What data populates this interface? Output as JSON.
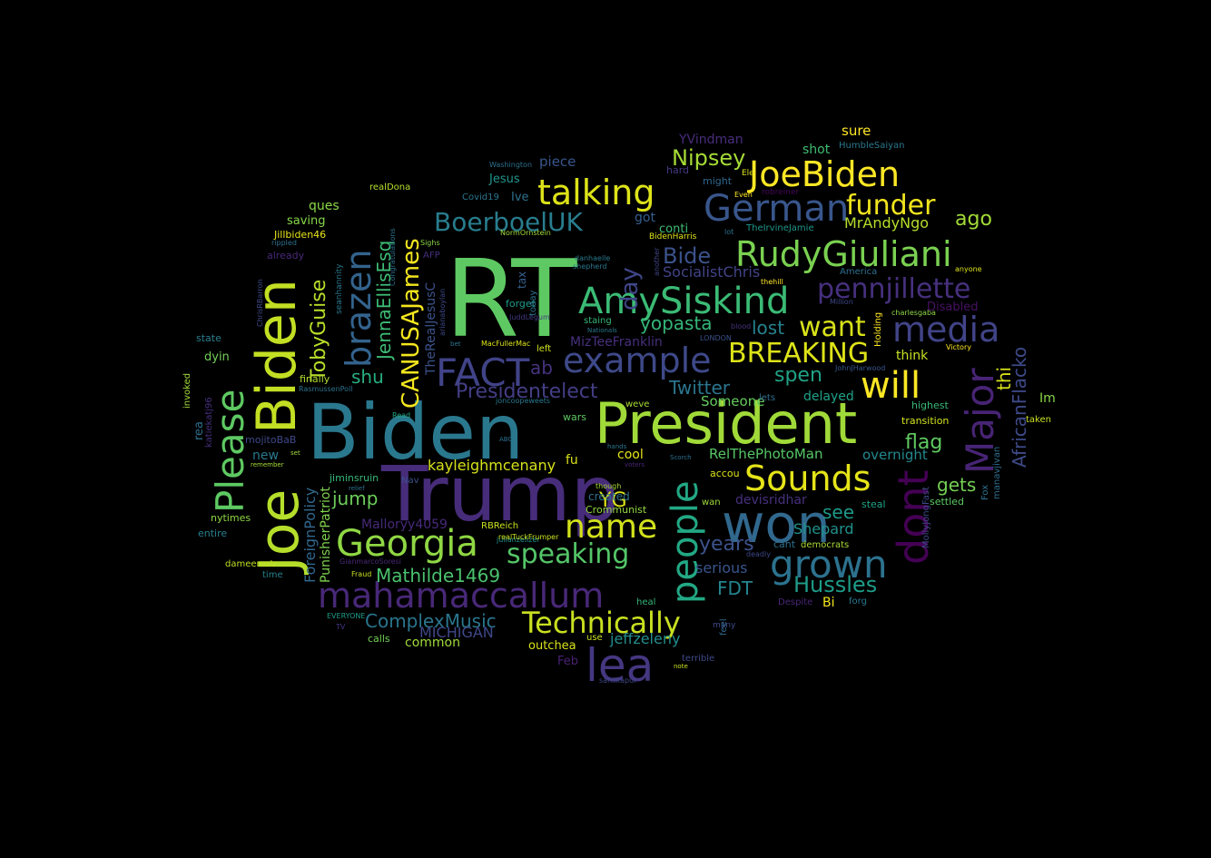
{
  "chart_data": {
    "type": "wordcloud",
    "words": [
      {
        "text": "RT",
        "color": "#5ec962"
      },
      {
        "text": "Biden",
        "color": "#2a788e"
      },
      {
        "text": "Trump",
        "color": "#472c7a"
      },
      {
        "text": "President",
        "color": "#a0da39"
      },
      {
        "text": "JoeBiden",
        "color": "#fde725"
      },
      {
        "text": "Joe",
        "color": "#b5de2b"
      },
      {
        "text": "Biden",
        "color": "#c2df23"
      },
      {
        "text": "won",
        "color": "#31688e"
      },
      {
        "text": "AmySiskind",
        "color": "#3bbb75"
      },
      {
        "text": "RudyGiuliani",
        "color": "#7ad151"
      },
      {
        "text": "German",
        "color": "#39568c"
      },
      {
        "text": "talking",
        "color": "#dde318"
      },
      {
        "text": "media",
        "color": "#414487"
      },
      {
        "text": "example",
        "color": "#3e4989"
      },
      {
        "text": "Please",
        "color": "#5ec962"
      },
      {
        "text": "Georgia",
        "color": "#8fd744"
      },
      {
        "text": "mahamaccallum",
        "color": "#482878"
      },
      {
        "text": "people",
        "color": "#22a884"
      },
      {
        "text": "grown",
        "color": "#2c728e"
      },
      {
        "text": "Sounds",
        "color": "#e5e419"
      },
      {
        "text": "name",
        "color": "#d2e21b"
      },
      {
        "text": "Technically",
        "color": "#c8e020"
      },
      {
        "text": "Major",
        "color": "#482475"
      },
      {
        "text": "dont",
        "color": "#440154"
      },
      {
        "text": "will",
        "color": "#fde725"
      },
      {
        "text": "brazen",
        "color": "#33638d"
      },
      {
        "text": "FACT",
        "color": "#404387"
      },
      {
        "text": "BREAKING",
        "color": "#dde318"
      },
      {
        "text": "pennjillette",
        "color": "#46307e"
      },
      {
        "text": "BoerboelUK",
        "color": "#287d8e"
      },
      {
        "text": "funder",
        "color": "#f1e51d"
      },
      {
        "text": "lea",
        "color": "#453781"
      },
      {
        "text": "speaking",
        "color": "#54c568"
      },
      {
        "text": "CANUSAJames",
        "color": "#f4e61e"
      },
      {
        "text": "want",
        "color": "#d8e219"
      },
      {
        "text": "AfricanFlacko",
        "color": "#3e4a89"
      },
      {
        "text": "day",
        "color": "#404688"
      },
      {
        "text": "TobyGuise",
        "color": "#b8de29"
      },
      {
        "text": "JennaEllisEsq",
        "color": "#3dbc74"
      },
      {
        "text": "Nipsey",
        "color": "#a5db36"
      },
      {
        "text": "Bide",
        "color": "#3b528b"
      },
      {
        "text": "Presidentelect",
        "color": "#433e85"
      },
      {
        "text": "Hussles",
        "color": "#1e9c89"
      },
      {
        "text": "ComplexMusic",
        "color": "#2a768e"
      },
      {
        "text": "Mathilde1469",
        "color": "#4ac16d"
      },
      {
        "text": "yopasta",
        "color": "#34b679"
      },
      {
        "text": "lost",
        "color": "#26828e"
      },
      {
        "text": "spen",
        "color": "#20a386"
      },
      {
        "text": "Twitter",
        "color": "#2b758e"
      },
      {
        "text": "YG",
        "color": "#dae319"
      },
      {
        "text": "FDT",
        "color": "#25858e"
      },
      {
        "text": "years",
        "color": "#3b528b"
      },
      {
        "text": "jump",
        "color": "#6ccd5a"
      },
      {
        "text": "flag",
        "color": "#60ca60"
      },
      {
        "text": "gets",
        "color": "#75d054"
      },
      {
        "text": "see",
        "color": "#1f998a"
      },
      {
        "text": "ago",
        "color": "#a2da37"
      },
      {
        "text": "thi",
        "color": "#d5e21a"
      },
      {
        "text": "shu",
        "color": "#27ad81"
      },
      {
        "text": "ab",
        "color": "#46337f"
      },
      {
        "text": "Shepard",
        "color": "#20928c"
      },
      {
        "text": "serious",
        "color": "#3a548c"
      },
      {
        "text": "kayleighmcenany",
        "color": "#d5e21a"
      },
      {
        "text": "jeffzeleny",
        "color": "#228d8d"
      },
      {
        "text": "MICHIGAN",
        "color": "#3f4788"
      },
      {
        "text": "TheRealJesusC",
        "color": "#3b528b"
      },
      {
        "text": "ForeignPolicy",
        "color": "#31688e"
      },
      {
        "text": "PunisherPatriot",
        "color": "#7fd34e"
      },
      {
        "text": "Malloryy4059",
        "color": "#472a7a"
      },
      {
        "text": "MrAndyNgo",
        "color": "#b5de2b"
      },
      {
        "text": "SocialistChris",
        "color": "#414487"
      },
      {
        "text": "MizTeeFranklin",
        "color": "#472f7d"
      },
      {
        "text": "devisridhar",
        "color": "#46307e"
      },
      {
        "text": "RelThePhotoMan",
        "color": "#56c667"
      },
      {
        "text": "overnight",
        "color": "#23898e"
      },
      {
        "text": "delayed",
        "color": "#1fa188"
      },
      {
        "text": "Someone",
        "color": "#65cb5e"
      },
      {
        "text": "think",
        "color": "#c5e021"
      },
      {
        "text": "Disabled",
        "color": "#471164"
      },
      {
        "text": "Im",
        "color": "#8bd646"
      },
      {
        "text": "piece",
        "color": "#39568c"
      },
      {
        "text": "Jesus",
        "color": "#1f968b"
      },
      {
        "text": "Ive",
        "color": "#2c718e"
      },
      {
        "text": "got",
        "color": "#355f8d"
      },
      {
        "text": "conti",
        "color": "#3dbc74"
      },
      {
        "text": "sure",
        "color": "#fde725"
      },
      {
        "text": "shot",
        "color": "#40bd72"
      },
      {
        "text": "YVindman",
        "color": "#472d7b"
      },
      {
        "text": "hard",
        "color": "#453882"
      },
      {
        "text": "might",
        "color": "#31688e"
      },
      {
        "text": "ques",
        "color": "#8bd646"
      },
      {
        "text": "saving",
        "color": "#86d549"
      },
      {
        "text": "Jillbiden46",
        "color": "#e7e419"
      },
      {
        "text": "already",
        "color": "#482979"
      },
      {
        "text": "rea",
        "color": "#2d708e"
      },
      {
        "text": "dyin",
        "color": "#73d056"
      },
      {
        "text": "state",
        "color": "#277f8e"
      },
      {
        "text": "finally",
        "color": "#b0dd2f"
      },
      {
        "text": "invoked",
        "color": "#a2da37"
      },
      {
        "text": "katiekatj96",
        "color": "#462f7e"
      },
      {
        "text": "new",
        "color": "#2a788e"
      },
      {
        "text": "jiminsruin",
        "color": "#37b878"
      },
      {
        "text": "mojitoBaB",
        "color": "#3f4889"
      },
      {
        "text": "nytimes",
        "color": "#8fd744"
      },
      {
        "text": "entire",
        "color": "#277f8e"
      },
      {
        "text": "dameemstr",
        "color": "#c2df23"
      },
      {
        "text": "time",
        "color": "#26828e"
      },
      {
        "text": "calls",
        "color": "#73d056"
      },
      {
        "text": "common",
        "color": "#a0da39"
      },
      {
        "text": "outchea",
        "color": "#d8e219"
      },
      {
        "text": "use",
        "color": "#c8e020"
      },
      {
        "text": "Feb",
        "color": "#482173"
      },
      {
        "text": "terrible",
        "color": "#3e4a89"
      },
      {
        "text": "heal",
        "color": "#35b779"
      },
      {
        "text": "many",
        "color": "#3e4989"
      },
      {
        "text": "Bi",
        "color": "#f1e51d"
      },
      {
        "text": "forg",
        "color": "#2a788e"
      },
      {
        "text": "Despite",
        "color": "#482677"
      },
      {
        "text": "created",
        "color": "#2c728e"
      },
      {
        "text": "Crommunist",
        "color": "#93d741"
      },
      {
        "text": "cool",
        "color": "#e5e419"
      },
      {
        "text": "fu",
        "color": "#d8e219"
      },
      {
        "text": "accou",
        "color": "#dae319"
      },
      {
        "text": "wan",
        "color": "#9fda3a"
      },
      {
        "text": "cant",
        "color": "#2c718e"
      },
      {
        "text": "democrats",
        "color": "#a8db34"
      },
      {
        "text": "steal",
        "color": "#20a486"
      },
      {
        "text": "settled",
        "color": "#5cc863"
      },
      {
        "text": "transition",
        "color": "#d2e21b"
      },
      {
        "text": "highest",
        "color": "#38b977"
      },
      {
        "text": "taken",
        "color": "#c8e020"
      },
      {
        "text": "lets",
        "color": "#2e6f8e"
      },
      {
        "text": "forget",
        "color": "#1e9c89"
      },
      {
        "text": "staing",
        "color": "#37b878"
      },
      {
        "text": "left",
        "color": "#d2e21b"
      },
      {
        "text": "today",
        "color": "#2d708e"
      },
      {
        "text": "tax",
        "color": "#355f8d"
      },
      {
        "text": "weve",
        "color": "#a8db34"
      },
      {
        "text": "wars",
        "color": "#5ec962"
      },
      {
        "text": "realDona",
        "color": "#b5de2b"
      },
      {
        "text": "Covid19",
        "color": "#2b758e"
      },
      {
        "text": "seanhannity",
        "color": "#2a788e"
      },
      {
        "text": "America",
        "color": "#2d708e"
      },
      {
        "text": "JuddLegum",
        "color": "#443983"
      },
      {
        "text": "RBReich",
        "color": "#c8e020"
      },
      {
        "text": "julianzelizer",
        "color": "#20928c"
      },
      {
        "text": "joncoopeweets",
        "color": "#2a788e"
      },
      {
        "text": "TheIrvineJamie",
        "color": "#1f968b"
      },
      {
        "text": "BidenHarris",
        "color": "#dde318"
      },
      {
        "text": "HumbleSaiyan",
        "color": "#2a788e"
      },
      {
        "text": "robreiner",
        "color": "#46075a"
      },
      {
        "text": "Washington",
        "color": "#2c718e"
      },
      {
        "text": "NormOrnstein",
        "color": "#a0da39"
      },
      {
        "text": "realTuckFrumper",
        "color": "#cae11f"
      },
      {
        "text": "GianmarcoSoresi",
        "color": "#482878"
      },
      {
        "text": "EVERYONE",
        "color": "#1f9e89"
      },
      {
        "text": "sahilkapur",
        "color": "#3f4788"
      },
      {
        "text": "ChrisRBarron",
        "color": "#3e4a89"
      },
      {
        "text": "RasmussenPoll",
        "color": "#2c728e"
      },
      {
        "text": "Congratulations",
        "color": "#2d708e"
      },
      {
        "text": "arianaboylan",
        "color": "#3e4989"
      },
      {
        "text": "manavjivan",
        "color": "#2e6e8e"
      },
      {
        "text": "MollyJongFast",
        "color": "#3e4a89"
      },
      {
        "text": "Holding",
        "color": "#fde725"
      },
      {
        "text": "JohnJHarwood",
        "color": "#39568c"
      },
      {
        "text": "charlesgaba",
        "color": "#8fd744"
      },
      {
        "text": "Fox",
        "color": "#2c718e"
      },
      {
        "text": "Victory",
        "color": "#fde725"
      },
      {
        "text": "anyone",
        "color": "#dde318"
      },
      {
        "text": "Million",
        "color": "#3f4788"
      },
      {
        "text": "blood",
        "color": "#46337f"
      },
      {
        "text": "LONDON",
        "color": "#3b528b"
      },
      {
        "text": "thehill",
        "color": "#fde725"
      },
      {
        "text": "Even",
        "color": "#fde725"
      },
      {
        "text": "Ele",
        "color": "#dae319"
      },
      {
        "text": "lot",
        "color": "#2c718e"
      },
      {
        "text": "another",
        "color": "#414487"
      },
      {
        "text": "shepherd",
        "color": "#2a788e"
      },
      {
        "text": "danhaelle",
        "color": "#2a788e"
      },
      {
        "text": "Sighs",
        "color": "#8bd646"
      },
      {
        "text": "AFP",
        "color": "#462f7e"
      },
      {
        "text": "rippled",
        "color": "#2d708e"
      },
      {
        "text": "bet",
        "color": "#2a788e"
      },
      {
        "text": "MacFullerMac",
        "color": "#dae319"
      },
      {
        "text": "ABO",
        "color": "#2c718e"
      },
      {
        "text": "Read",
        "color": "#22a884"
      },
      {
        "text": "hands",
        "color": "#2a788e"
      },
      {
        "text": "voters",
        "color": "#482878"
      },
      {
        "text": "Nav",
        "color": "#3b528b"
      },
      {
        "text": "Nationals",
        "color": "#2a788e"
      },
      {
        "text": "though",
        "color": "#a8db34"
      },
      {
        "text": "set",
        "color": "#a0da39"
      },
      {
        "text": "remember",
        "color": "#a8db34"
      },
      {
        "text": "relief",
        "color": "#2d708e"
      },
      {
        "text": "Fraud",
        "color": "#c8e020"
      },
      {
        "text": "TV",
        "color": "#463480"
      },
      {
        "text": "feel",
        "color": "#31688e"
      },
      {
        "text": "note",
        "color": "#c8e020"
      },
      {
        "text": "Scorch",
        "color": "#2c718e"
      },
      {
        "text": "deadly",
        "color": "#3f4788"
      }
    ]
  }
}
